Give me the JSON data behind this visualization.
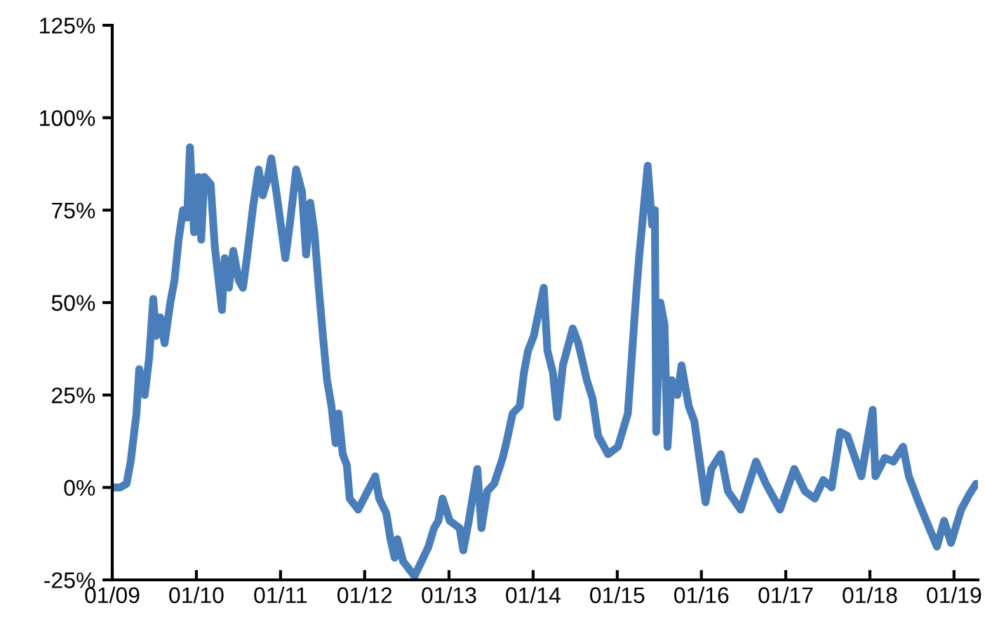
{
  "chart_data": {
    "type": "line",
    "x": [
      "2009-01-04",
      "2009-02-04",
      "2009-03-04",
      "2009-03-22",
      "2009-04-16",
      "2009-04-28",
      "2009-05-22",
      "2009-06-10",
      "2009-06-28",
      "2009-07-10",
      "2009-07-28",
      "2009-08-16",
      "2009-09-10",
      "2009-09-28",
      "2009-10-16",
      "2009-11-04",
      "2009-11-22",
      "2009-12-04",
      "2009-12-22",
      "2010-01-10",
      "2010-01-22",
      "2010-02-04",
      "2010-03-04",
      "2010-03-22",
      "2010-04-22",
      "2010-05-04",
      "2010-05-22",
      "2010-06-10",
      "2010-07-04",
      "2010-07-22",
      "2010-08-10",
      "2010-09-04",
      "2010-09-28",
      "2010-10-16",
      "2010-11-04",
      "2010-11-22",
      "2010-12-16",
      "2011-01-22",
      "2011-02-10",
      "2011-03-10",
      "2011-04-04",
      "2011-04-22",
      "2011-05-10",
      "2011-05-28",
      "2011-06-16",
      "2011-07-04",
      "2011-07-22",
      "2011-08-10",
      "2011-08-28",
      "2011-09-10",
      "2011-09-28",
      "2011-10-16",
      "2011-10-28",
      "2011-12-04",
      "2012-02-16",
      "2012-03-04",
      "2012-04-04",
      "2012-04-22",
      "2012-05-10",
      "2012-05-22",
      "2012-06-16",
      "2012-08-04",
      "2012-09-04",
      "2012-10-04",
      "2012-10-28",
      "2012-11-16",
      "2012-12-04",
      "2013-01-04",
      "2013-02-16",
      "2013-03-04",
      "2013-03-28",
      "2013-05-04",
      "2013-05-22",
      "2013-06-16",
      "2013-07-16",
      "2013-08-22",
      "2013-09-10",
      "2013-10-04",
      "2013-11-04",
      "2013-11-22",
      "2013-12-10",
      "2014-01-04",
      "2014-02-16",
      "2014-03-04",
      "2014-03-28",
      "2014-04-16",
      "2014-05-10",
      "2014-06-22",
      "2014-07-16",
      "2014-08-22",
      "2014-09-16",
      "2014-10-10",
      "2014-11-22",
      "2015-01-04",
      "2015-02-16",
      "2015-03-25",
      "2015-04-07",
      "2015-04-25",
      "2015-05-13",
      "2015-06-01",
      "2015-06-13",
      "2015-06-19",
      "2015-07-07",
      "2015-07-25",
      "2015-08-07",
      "2015-08-25",
      "2015-09-19",
      "2015-10-07",
      "2015-11-07",
      "2015-12-01",
      "2016-01-19",
      "2016-02-13",
      "2016-03-25",
      "2016-04-25",
      "2016-06-19",
      "2016-07-25",
      "2016-08-25",
      "2016-10-07",
      "2016-12-07",
      "2017-02-07",
      "2017-03-25",
      "2017-05-07",
      "2017-06-13",
      "2017-07-19",
      "2017-08-25",
      "2017-09-25",
      "2017-11-25",
      "2018-01-13",
      "2018-01-25",
      "2018-03-07",
      "2018-04-13",
      "2018-05-25",
      "2018-06-19",
      "2018-08-07",
      "2018-10-19",
      "2018-11-19",
      "2018-12-19",
      "2019-02-01",
      "2019-03-07",
      "2019-04-07"
    ],
    "series": [
      {
        "color": "#4a7ebb",
        "values": [
          0,
          0,
          1,
          7,
          20,
          32,
          25,
          35,
          51,
          41,
          46,
          39,
          50,
          56,
          67,
          75,
          73,
          92,
          69,
          84,
          67,
          84,
          82,
          65,
          48,
          62,
          54,
          64,
          56,
          54,
          63,
          76,
          86,
          79,
          83,
          89,
          79,
          62,
          71,
          86,
          80,
          63,
          77,
          69,
          54,
          41,
          29,
          22,
          12,
          20,
          9,
          6,
          -3,
          -6,
          3,
          -3,
          -7,
          -14,
          -19,
          -14,
          -20,
          -24,
          -20,
          -16,
          -11,
          -9,
          -3,
          -9,
          -11,
          -17,
          -9,
          5,
          -11,
          -1,
          1,
          8,
          13,
          20,
          22,
          31,
          37,
          41,
          54,
          37,
          31,
          19,
          33,
          43,
          39,
          29,
          24,
          14,
          9,
          11,
          20,
          53,
          63,
          75,
          87,
          71,
          75,
          15,
          50,
          44,
          11,
          29,
          25,
          33,
          22,
          18,
          -4,
          5,
          9,
          -1,
          -6,
          1,
          7,
          1,
          -6,
          5,
          -1,
          -3,
          2,
          0,
          15,
          14,
          3,
          21,
          3,
          8,
          7,
          11,
          3,
          -5,
          -16,
          -9,
          -15,
          -6,
          -2,
          1
        ]
      }
    ],
    "xlim": [
      "2009-01-01",
      "2019-04-15"
    ],
    "xticks": [
      {
        "value": "2009-01-01",
        "label": "01/09"
      },
      {
        "value": "2010-01-01",
        "label": "01/10"
      },
      {
        "value": "2011-01-01",
        "label": "01/11"
      },
      {
        "value": "2012-01-01",
        "label": "01/12"
      },
      {
        "value": "2013-01-01",
        "label": "01/13"
      },
      {
        "value": "2014-01-01",
        "label": "01/14"
      },
      {
        "value": "2015-01-01",
        "label": "01/15"
      },
      {
        "value": "2016-01-01",
        "label": "01/16"
      },
      {
        "value": "2017-01-01",
        "label": "01/17"
      },
      {
        "value": "2018-01-01",
        "label": "01/18"
      },
      {
        "value": "2019-01-01",
        "label": "01/19"
      }
    ],
    "ylim": [
      -25,
      125
    ],
    "yticks": [
      {
        "value": -25,
        "label": "-25%"
      },
      {
        "value": 0,
        "label": "0%"
      },
      {
        "value": 25,
        "label": "25%"
      },
      {
        "value": 50,
        "label": "50%"
      },
      {
        "value": 75,
        "label": "75%"
      },
      {
        "value": 100,
        "label": "100%"
      },
      {
        "value": 125,
        "label": "125%"
      }
    ],
    "grid": false,
    "legend": false,
    "marker": "none",
    "line_style": "solid"
  }
}
